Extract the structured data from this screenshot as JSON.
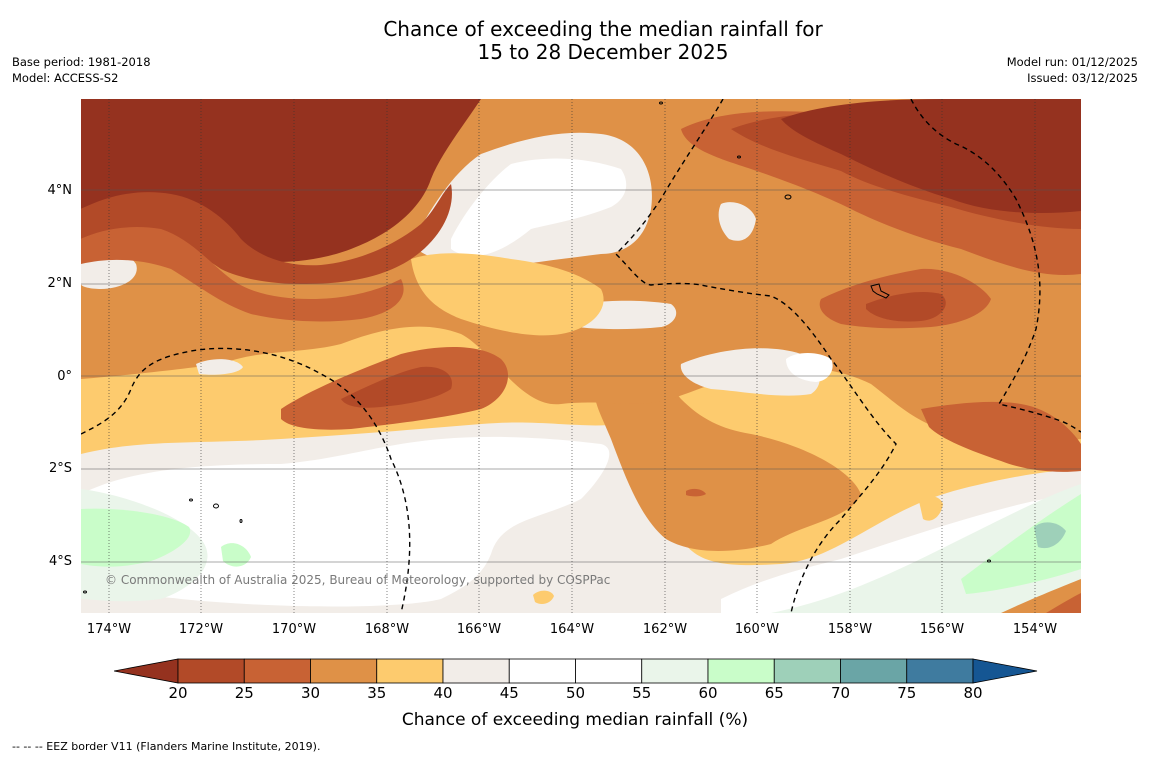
{
  "title": {
    "line1": "Chance of exceeding the median rainfall for",
    "line2": "15 to 28 December 2025"
  },
  "info_left": {
    "base_period": "Base period: 1981-2018",
    "model": "Model: ACCESS-S2"
  },
  "info_right": {
    "model_run": "Model run: 01/12/2025",
    "issued": "Issued: 03/12/2025"
  },
  "map": {
    "lat_labels": [
      "4°N",
      "2°N",
      "0°",
      "2°S",
      "4°S"
    ],
    "lon_labels": [
      "174°W",
      "172°W",
      "170°W",
      "168°W",
      "166°W",
      "164°W",
      "162°W",
      "160°W",
      "158°W",
      "156°W",
      "154°W"
    ],
    "copyright": "© Commonwealth of Australia 2025, Bureau of Meteorology, supported by COSPPac"
  },
  "legend": {
    "ticks": [
      "20",
      "25",
      "30",
      "35",
      "40",
      "45",
      "50",
      "55",
      "60",
      "65",
      "70",
      "75",
      "80"
    ],
    "colors": [
      "#95321f",
      "#b24a28",
      "#c86234",
      "#df9147",
      "#fdcb6e",
      "#f2ede8",
      "#ffffff",
      "#ffffff",
      "#eaf5ea",
      "#c9fdc9",
      "#9ed0b9",
      "#6aa5a6",
      "#3f7b9f",
      "#155693"
    ],
    "title": "Chance of exceeding median rainfall (%)"
  },
  "footnote": "--  --  -- EEZ border V11 (Flanders Marine Institute, 2019)."
}
